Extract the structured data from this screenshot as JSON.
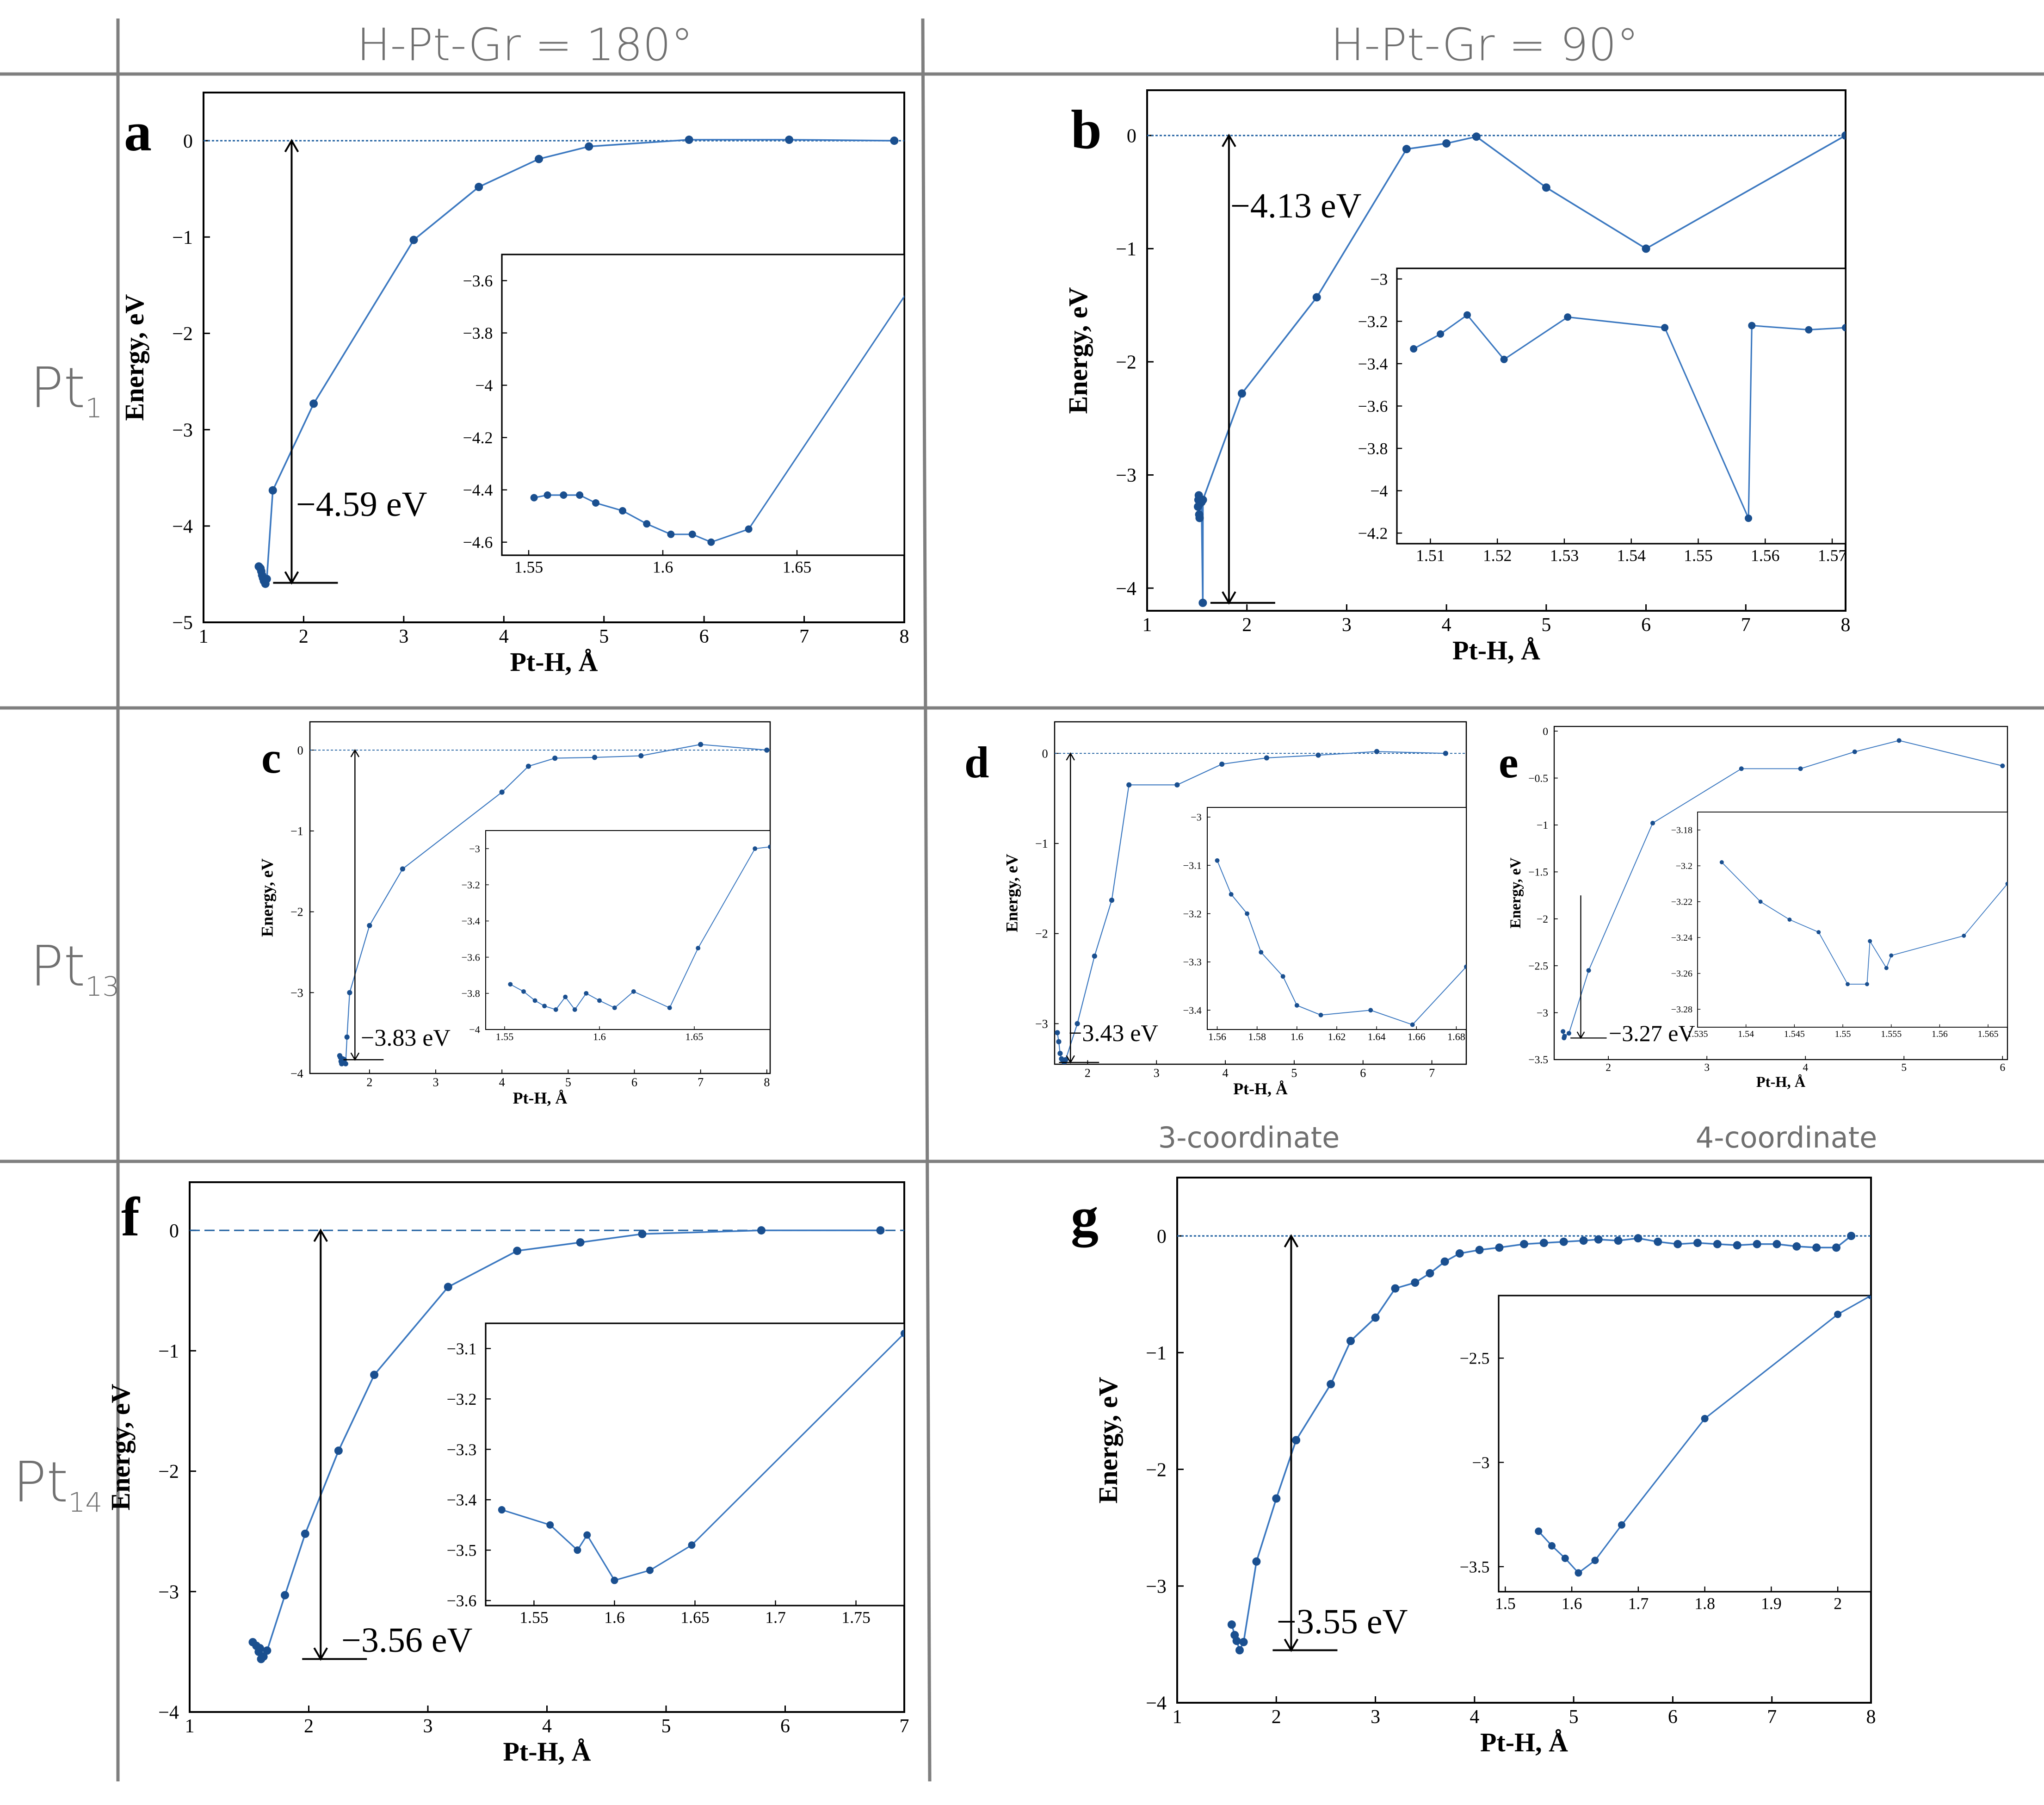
{
  "column_headers": [
    "H-Pt-Gr = 180°",
    "H-Pt-Gr = 90°"
  ],
  "row_labels": [
    {
      "base": "Pt",
      "sub": "1"
    },
    {
      "base": "Pt",
      "sub": "13"
    },
    {
      "base": "Pt",
      "sub": "14"
    }
  ],
  "sublabels": {
    "d": "3-coordinate",
    "e": "4-coordinate"
  },
  "chart_data": [
    {
      "panel": "a",
      "type": "line",
      "xlabel": "Pt-H, Å",
      "ylabel": "Energy, eV",
      "xlim": [
        1,
        8
      ],
      "ylim": [
        -5,
        0.5
      ],
      "xticks": [
        1,
        2,
        3,
        4,
        5,
        6,
        7,
        8
      ],
      "yticks": [
        0,
        -1,
        -2,
        -3,
        -4,
        -5
      ],
      "reference_line": 0,
      "x": [
        1.552,
        1.561,
        1.569,
        1.577,
        1.585,
        1.594,
        1.603,
        1.611,
        1.618,
        1.632,
        1.692,
        2.1,
        3.1,
        3.75,
        4.35,
        4.85,
        5.85,
        6.85,
        7.9
      ],
      "y": [
        -4.42,
        -4.43,
        -4.44,
        -4.47,
        -4.51,
        -4.54,
        -4.57,
        -4.58,
        -4.6,
        -4.55,
        -3.63,
        -2.73,
        -1.03,
        -0.48,
        -0.19,
        -0.06,
        0.01,
        0.01,
        0.0
      ],
      "annotation": {
        "text": "−4.59 eV",
        "x": 1.88,
        "y_top": 0,
        "y_bottom": -4.59
      },
      "inset": {
        "xlim": [
          1.54,
          1.69
        ],
        "ylim": [
          -4.65,
          -3.5
        ],
        "xticks": [
          1.55,
          1.6,
          1.65
        ],
        "yticks": [
          -3.6,
          -3.8,
          -4,
          -4.2,
          -4.4,
          -4.6
        ],
        "x": [
          1.552,
          1.557,
          1.563,
          1.569,
          1.575,
          1.585,
          1.594,
          1.603,
          1.611,
          1.618,
          1.632,
          1.692
        ],
        "y": [
          -4.43,
          -4.42,
          -4.42,
          -4.42,
          -4.45,
          -4.48,
          -4.53,
          -4.57,
          -4.57,
          -4.6,
          -4.55,
          -3.63
        ]
      }
    },
    {
      "panel": "b",
      "type": "line",
      "xlabel": "Pt-H, Å",
      "ylabel": "Energy, eV",
      "xlim": [
        1,
        8
      ],
      "ylim": [
        -4.2,
        0.4
      ],
      "xticks": [
        1,
        2,
        3,
        4,
        5,
        6,
        7,
        8
      ],
      "yticks": [
        0,
        -1,
        -2,
        -3,
        -4
      ],
      "reference_line": 0,
      "x": [
        1.51,
        1.514,
        1.518,
        1.522,
        1.526,
        1.531,
        1.545,
        1.558,
        1.559,
        1.95,
        2.7,
        3.6,
        4.0,
        4.3,
        5.0,
        6.0,
        8.0
      ],
      "y": [
        -3.28,
        -3.22,
        -3.18,
        -3.35,
        -3.38,
        -3.25,
        -3.24,
        -4.13,
        -3.22,
        -2.28,
        -1.43,
        -0.12,
        -0.07,
        -0.01,
        -0.46,
        -1.0,
        0.0
      ],
      "annotation": {
        "text": "−4.13 eV",
        "x": 1.82,
        "y_top": 0,
        "y_bottom": -4.13
      },
      "inset": {
        "xlim": [
          1.505,
          1.572
        ],
        "ylim": [
          -4.25,
          -2.95
        ],
        "xticks": [
          1.51,
          1.52,
          1.53,
          1.54,
          1.55,
          1.56,
          1.57
        ],
        "yticks": [
          -3,
          -3.2,
          -3.4,
          -3.6,
          -3.8,
          -4,
          -4.2
        ],
        "x": [
          1.5075,
          1.5115,
          1.5155,
          1.521,
          1.5305,
          1.545,
          1.5575,
          1.558,
          1.5665,
          1.572
        ],
        "y": [
          -3.33,
          -3.26,
          -3.17,
          -3.38,
          -3.18,
          -3.23,
          -4.13,
          -3.22,
          -3.24,
          -3.23
        ]
      }
    },
    {
      "panel": "c",
      "type": "line",
      "xlabel": "Pt-H, Å",
      "ylabel": "Energy, eV",
      "xlim": [
        1.1,
        8.05
      ],
      "ylim": [
        -4,
        0.35
      ],
      "xticks": [
        2,
        3,
        4,
        5,
        6,
        7,
        8
      ],
      "yticks": [
        0,
        -1,
        -2,
        -3,
        -4
      ],
      "reference_line": 0,
      "x": [
        1.55,
        1.56,
        1.57,
        1.58,
        1.6,
        1.62,
        1.64,
        1.66,
        1.7,
        2.0,
        2.5,
        4.0,
        4.4,
        4.8,
        5.4,
        6.1,
        7.0,
        8.0
      ],
      "y": [
        -3.78,
        -3.8,
        -3.85,
        -3.88,
        -3.82,
        -3.83,
        -3.88,
        -3.55,
        -3.0,
        -2.17,
        -1.47,
        -0.52,
        -0.2,
        -0.1,
        -0.09,
        -0.07,
        0.07,
        0.0
      ],
      "annotation": {
        "text": "−3.83 eV",
        "x": 1.78,
        "y_top": 0,
        "y_bottom": -3.83
      },
      "inset": {
        "xlim": [
          1.54,
          1.69
        ],
        "ylim": [
          -4.0,
          -2.9
        ],
        "xticks": [
          1.55,
          1.6,
          1.65
        ],
        "yticks": [
          -3,
          -3.2,
          -3.4,
          -3.6,
          -3.8,
          -4
        ],
        "x": [
          1.553,
          1.56,
          1.566,
          1.571,
          1.577,
          1.582,
          1.587,
          1.593,
          1.6,
          1.608,
          1.618,
          1.637,
          1.652,
          1.682,
          1.69
        ],
        "y": [
          -3.75,
          -3.79,
          -3.84,
          -3.87,
          -3.89,
          -3.82,
          -3.89,
          -3.8,
          -3.84,
          -3.88,
          -3.79,
          -3.88,
          -3.55,
          -3.0,
          -2.99
        ]
      }
    },
    {
      "panel": "d",
      "type": "line",
      "xlabel": "Pt-H, Å",
      "ylabel": "Energy, eV",
      "xlim": [
        1.52,
        7.5
      ],
      "ylim": [
        -3.45,
        0.35
      ],
      "xticks": [
        2,
        3,
        4,
        5,
        6,
        7
      ],
      "yticks": [
        0,
        -1,
        -2,
        -3
      ],
      "reference_line": 0,
      "x": [
        1.56,
        1.58,
        1.6,
        1.62,
        1.64,
        1.66,
        1.68,
        1.85,
        2.1,
        2.35,
        2.6,
        3.3,
        3.95,
        4.6,
        5.35,
        6.2,
        7.2
      ],
      "y": [
        -3.1,
        -3.2,
        -3.33,
        -3.39,
        -3.41,
        -3.43,
        -3.4,
        -3.0,
        -2.25,
        -1.63,
        -0.35,
        -0.35,
        -0.12,
        -0.05,
        -0.02,
        0.02,
        0.0
      ],
      "annotation": {
        "text": "−3.43 eV",
        "x": 1.75,
        "y_top": 0,
        "y_bottom": -3.43
      },
      "inset": {
        "xlim": [
          1.555,
          1.685
        ],
        "ylim": [
          -3.44,
          -2.98
        ],
        "xticks": [
          1.56,
          1.58,
          1.6,
          1.62,
          1.64,
          1.66,
          1.68
        ],
        "yticks": [
          -3,
          -3.1,
          -3.2,
          -3.3,
          -3.4
        ],
        "x": [
          1.56,
          1.567,
          1.575,
          1.582,
          1.593,
          1.6,
          1.612,
          1.637,
          1.658,
          1.685
        ],
        "y": [
          -3.09,
          -3.16,
          -3.2,
          -3.28,
          -3.33,
          -3.39,
          -3.41,
          -3.4,
          -3.43,
          -3.31
        ]
      }
    },
    {
      "panel": "e",
      "type": "line",
      "xlabel": "Pt-H, Å",
      "ylabel": "Energy, eV",
      "xlim": [
        1.45,
        6.05
      ],
      "ylim": [
        -3.5,
        0.05
      ],
      "xticks": [
        2,
        3,
        4,
        5,
        6
      ],
      "yticks": [
        0,
        -0.5,
        -1,
        -1.5,
        -2,
        -2.5,
        -3,
        -3.5
      ],
      "reference_line": null,
      "x": [
        1.54,
        1.55,
        1.553,
        1.555,
        1.6,
        1.8,
        2.45,
        3.35,
        3.95,
        4.5,
        4.95,
        6.0
      ],
      "y": [
        -3.2,
        -3.27,
        -3.26,
        -3.25,
        -3.22,
        -2.55,
        -0.98,
        -0.4,
        -0.4,
        -0.22,
        -0.1,
        -0.37
      ],
      "annotation": {
        "text": "−3.27 eV",
        "x": 1.72,
        "y_top": -1.75,
        "y_bottom": -3.27
      },
      "inset": {
        "xlim": [
          1.535,
          1.567
        ],
        "ylim": [
          -3.29,
          -3.17
        ],
        "xticks": [
          1.535,
          1.54,
          1.545,
          1.55,
          1.555,
          1.56,
          1.565
        ],
        "yticks": [
          -3.18,
          -3.2,
          -3.22,
          -3.24,
          -3.26,
          -3.28
        ],
        "x": [
          1.5375,
          1.5415,
          1.5445,
          1.5475,
          1.5505,
          1.5525,
          1.5528,
          1.5545,
          1.555,
          1.5625,
          1.567
        ],
        "y": [
          -3.198,
          -3.22,
          -3.23,
          -3.237,
          -3.266,
          -3.266,
          -3.242,
          -3.257,
          -3.25,
          -3.239,
          -3.21
        ]
      }
    },
    {
      "panel": "f",
      "type": "line",
      "xlabel": "Pt-H, Å",
      "ylabel": "Energy, eV",
      "xlim": [
        1,
        7
      ],
      "ylim": [
        -4,
        0.4
      ],
      "xticks": [
        1,
        2,
        3,
        4,
        5,
        6,
        7
      ],
      "yticks": [
        0,
        -1,
        -2,
        -3,
        -4
      ],
      "reference_line": 0,
      "x": [
        1.53,
        1.56,
        1.58,
        1.59,
        1.6,
        1.62,
        1.65,
        1.8,
        1.97,
        2.25,
        2.55,
        3.17,
        3.75,
        4.28,
        4.8,
        5.8,
        6.8
      ],
      "y": [
        -3.42,
        -3.45,
        -3.5,
        -3.47,
        -3.56,
        -3.54,
        -3.49,
        -3.03,
        -2.52,
        -1.83,
        -1.2,
        -0.47,
        -0.17,
        -0.1,
        -0.03,
        0.0,
        0.0
      ],
      "annotation": {
        "text": "−3.56 eV",
        "x": 2.1,
        "y_top": 0,
        "y_bottom": -3.56
      },
      "inset": {
        "xlim": [
          1.52,
          1.78
        ],
        "ylim": [
          -3.61,
          -3.05
        ],
        "xticks": [
          1.55,
          1.6,
          1.65,
          1.7,
          1.75
        ],
        "yticks": [
          -3.1,
          -3.2,
          -3.3,
          -3.4,
          -3.5,
          -3.6
        ],
        "x": [
          1.53,
          1.56,
          1.577,
          1.583,
          1.6,
          1.622,
          1.648,
          1.78
        ],
        "y": [
          -3.42,
          -3.45,
          -3.5,
          -3.47,
          -3.56,
          -3.54,
          -3.49,
          -3.07
        ]
      }
    },
    {
      "panel": "g",
      "type": "line",
      "xlabel": "Pt-H, Å",
      "ylabel": "Energy, eV",
      "xlim": [
        1,
        8
      ],
      "ylim": [
        -4,
        0.5
      ],
      "xticks": [
        1,
        2,
        3,
        4,
        5,
        6,
        7,
        8
      ],
      "yticks": [
        0,
        -1,
        -2,
        -3,
        -4
      ],
      "reference_line": 0,
      "x": [
        1.55,
        1.58,
        1.6,
        1.63,
        1.67,
        1.8,
        2.0,
        2.2,
        2.55,
        2.75,
        3.0,
        3.2,
        3.4,
        3.55,
        3.7,
        3.85,
        4.05,
        4.25,
        4.5,
        4.7,
        4.9,
        5.1,
        5.25,
        5.45,
        5.65,
        5.85,
        6.05,
        6.25,
        6.45,
        6.65,
        6.85,
        7.05,
        7.25,
        7.45,
        7.65,
        7.8
      ],
      "y": [
        -3.33,
        -3.42,
        -3.47,
        -3.55,
        -3.48,
        -2.79,
        -2.25,
        -1.75,
        -1.27,
        -0.9,
        -0.7,
        -0.45,
        -0.4,
        -0.32,
        -0.22,
        -0.15,
        -0.12,
        -0.1,
        -0.07,
        -0.06,
        -0.05,
        -0.04,
        -0.03,
        -0.04,
        -0.02,
        -0.05,
        -0.07,
        -0.06,
        -0.07,
        -0.08,
        -0.07,
        -0.07,
        -0.09,
        -0.1,
        -0.1,
        0.0
      ],
      "annotation": {
        "text": "−3.55 eV",
        "x": 2.15,
        "y_top": 0,
        "y_bottom": -3.55
      },
      "inset": {
        "xlim": [
          1.49,
          2.05
        ],
        "ylim": [
          -3.62,
          -2.2
        ],
        "xticks": [
          1.5,
          1.6,
          1.7,
          1.8,
          1.9,
          2
        ],
        "yticks": [
          -2.5,
          -3,
          -3.5
        ],
        "x": [
          1.55,
          1.57,
          1.59,
          1.61,
          1.635,
          1.675,
          1.8,
          2.0,
          2.05
        ],
        "y": [
          -3.33,
          -3.4,
          -3.46,
          -3.53,
          -3.47,
          -3.3,
          -2.79,
          -2.29,
          -2.2
        ]
      }
    }
  ]
}
